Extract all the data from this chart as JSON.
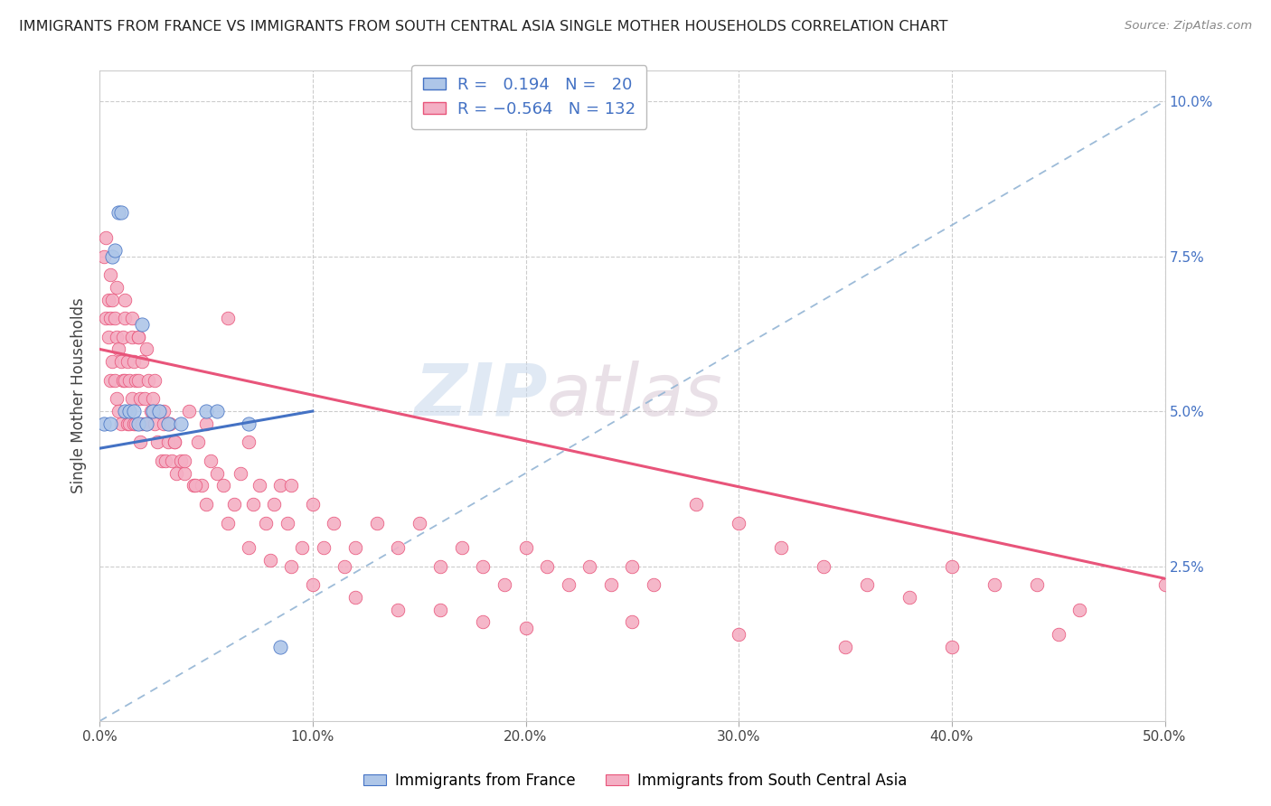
{
  "title": "IMMIGRANTS FROM FRANCE VS IMMIGRANTS FROM SOUTH CENTRAL ASIA SINGLE MOTHER HOUSEHOLDS CORRELATION CHART",
  "source": "Source: ZipAtlas.com",
  "ylabel": "Single Mother Households",
  "xlim": [
    0.0,
    0.5
  ],
  "ylim": [
    0.0,
    0.105
  ],
  "xticks": [
    0.0,
    0.1,
    0.2,
    0.3,
    0.4,
    0.5
  ],
  "xtick_labels": [
    "0.0%",
    "10.0%",
    "20.0%",
    "30.0%",
    "40.0%",
    "50.0%"
  ],
  "yticks_right": [
    0.025,
    0.05,
    0.075,
    0.1
  ],
  "ytick_labels_right": [
    "2.5%",
    "5.0%",
    "7.5%",
    "10.0%"
  ],
  "france_R": 0.194,
  "france_N": 20,
  "asia_R": -0.564,
  "asia_N": 132,
  "france_color": "#aec6e8",
  "asia_color": "#f4afc4",
  "france_line_color": "#4472c4",
  "asia_line_color": "#e8547a",
  "dashed_line_color": "#92b4d4",
  "watermark_zip": "ZIP",
  "watermark_atlas": "atlas",
  "france_x": [
    0.002,
    0.005,
    0.006,
    0.007,
    0.009,
    0.01,
    0.012,
    0.014,
    0.016,
    0.018,
    0.02,
    0.022,
    0.025,
    0.028,
    0.032,
    0.038,
    0.05,
    0.055,
    0.07,
    0.085
  ],
  "france_y": [
    0.048,
    0.048,
    0.075,
    0.076,
    0.082,
    0.082,
    0.05,
    0.05,
    0.05,
    0.048,
    0.064,
    0.048,
    0.05,
    0.05,
    0.048,
    0.048,
    0.05,
    0.05,
    0.048,
    0.012
  ],
  "asia_x": [
    0.002,
    0.003,
    0.003,
    0.004,
    0.004,
    0.005,
    0.005,
    0.006,
    0.006,
    0.007,
    0.007,
    0.008,
    0.008,
    0.009,
    0.009,
    0.01,
    0.01,
    0.011,
    0.011,
    0.012,
    0.012,
    0.013,
    0.013,
    0.014,
    0.014,
    0.015,
    0.015,
    0.016,
    0.016,
    0.017,
    0.017,
    0.018,
    0.018,
    0.019,
    0.019,
    0.02,
    0.02,
    0.021,
    0.022,
    0.023,
    0.024,
    0.025,
    0.026,
    0.027,
    0.028,
    0.029,
    0.03,
    0.031,
    0.032,
    0.033,
    0.034,
    0.035,
    0.036,
    0.038,
    0.04,
    0.042,
    0.044,
    0.046,
    0.048,
    0.05,
    0.052,
    0.055,
    0.058,
    0.06,
    0.063,
    0.066,
    0.07,
    0.072,
    0.075,
    0.078,
    0.082,
    0.085,
    0.088,
    0.09,
    0.095,
    0.1,
    0.105,
    0.11,
    0.115,
    0.12,
    0.13,
    0.14,
    0.15,
    0.16,
    0.17,
    0.18,
    0.19,
    0.2,
    0.21,
    0.22,
    0.23,
    0.24,
    0.25,
    0.26,
    0.28,
    0.3,
    0.32,
    0.34,
    0.36,
    0.38,
    0.4,
    0.42,
    0.44,
    0.46,
    0.005,
    0.008,
    0.012,
    0.015,
    0.018,
    0.022,
    0.026,
    0.03,
    0.035,
    0.04,
    0.045,
    0.05,
    0.06,
    0.07,
    0.08,
    0.09,
    0.1,
    0.12,
    0.14,
    0.16,
    0.18,
    0.2,
    0.25,
    0.3,
    0.35,
    0.4,
    0.45,
    0.5
  ],
  "asia_y": [
    0.075,
    0.078,
    0.065,
    0.068,
    0.062,
    0.065,
    0.055,
    0.068,
    0.058,
    0.065,
    0.055,
    0.062,
    0.052,
    0.06,
    0.05,
    0.058,
    0.048,
    0.062,
    0.055,
    0.065,
    0.055,
    0.058,
    0.048,
    0.055,
    0.048,
    0.062,
    0.052,
    0.058,
    0.048,
    0.055,
    0.048,
    0.062,
    0.055,
    0.052,
    0.045,
    0.058,
    0.048,
    0.052,
    0.048,
    0.055,
    0.05,
    0.052,
    0.048,
    0.045,
    0.05,
    0.042,
    0.048,
    0.042,
    0.045,
    0.048,
    0.042,
    0.045,
    0.04,
    0.042,
    0.04,
    0.05,
    0.038,
    0.045,
    0.038,
    0.048,
    0.042,
    0.04,
    0.038,
    0.065,
    0.035,
    0.04,
    0.045,
    0.035,
    0.038,
    0.032,
    0.035,
    0.038,
    0.032,
    0.038,
    0.028,
    0.035,
    0.028,
    0.032,
    0.025,
    0.028,
    0.032,
    0.028,
    0.032,
    0.025,
    0.028,
    0.025,
    0.022,
    0.028,
    0.025,
    0.022,
    0.025,
    0.022,
    0.025,
    0.022,
    0.035,
    0.032,
    0.028,
    0.025,
    0.022,
    0.02,
    0.025,
    0.022,
    0.022,
    0.018,
    0.072,
    0.07,
    0.068,
    0.065,
    0.062,
    0.06,
    0.055,
    0.05,
    0.045,
    0.042,
    0.038,
    0.035,
    0.032,
    0.028,
    0.026,
    0.025,
    0.022,
    0.02,
    0.018,
    0.018,
    0.016,
    0.015,
    0.016,
    0.014,
    0.012,
    0.012,
    0.014,
    0.022
  ]
}
